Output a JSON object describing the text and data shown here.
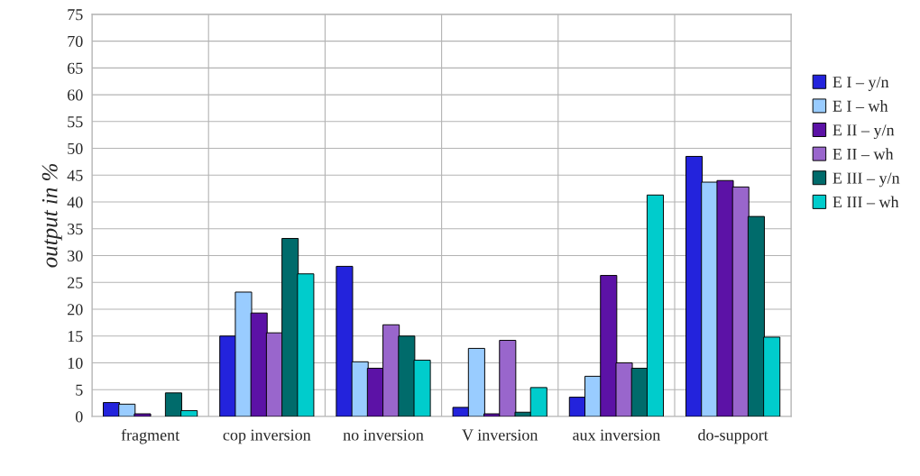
{
  "chart_data": {
    "type": "bar",
    "ylabel": "output in %",
    "categories": [
      "fragment",
      "cop inversion",
      "no inversion",
      "V inversion",
      "aux inversion",
      "do-support"
    ],
    "series": [
      {
        "name": "E I – y/n",
        "color": "#2323dc",
        "values": [
          2.6,
          15.0,
          28.0,
          1.7,
          3.6,
          48.5
        ]
      },
      {
        "name": "E I – wh",
        "color": "#99ccff",
        "values": [
          2.3,
          23.2,
          10.2,
          12.7,
          7.5,
          43.7
        ]
      },
      {
        "name": "E II – y/n",
        "color": "#5c12a6",
        "values": [
          0.5,
          19.3,
          9.0,
          0.5,
          26.3,
          44.0
        ]
      },
      {
        "name": "E II – wh",
        "color": "#9966cc",
        "values": [
          null,
          15.6,
          17.1,
          14.2,
          10.0,
          42.8
        ]
      },
      {
        "name": "E III – y/n",
        "color": "#006b6b",
        "values": [
          4.4,
          33.2,
          15.0,
          0.8,
          9.0,
          37.3
        ]
      },
      {
        "name": "E III – wh",
        "color": "#00cccc",
        "values": [
          1.1,
          26.6,
          10.5,
          5.4,
          41.3,
          14.8
        ]
      }
    ],
    "ylim": [
      0,
      75
    ],
    "yticks": [
      0,
      5,
      10,
      15,
      20,
      25,
      30,
      35,
      40,
      45,
      50,
      55,
      60,
      65,
      70,
      75
    ],
    "grid": true,
    "legend": "right"
  }
}
